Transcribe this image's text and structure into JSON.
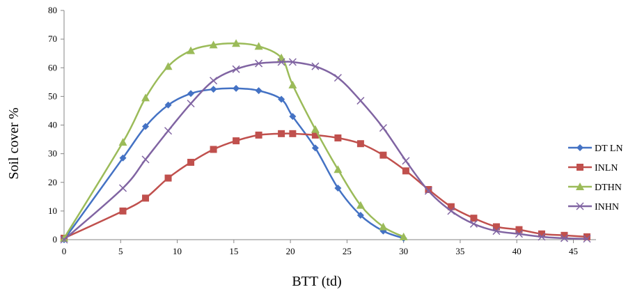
{
  "chart_data": {
    "type": "line",
    "title": "",
    "xlabel": "BTT (td)",
    "ylabel": "Soil cover %",
    "xlim": [
      0,
      47
    ],
    "ylim": [
      0,
      80
    ],
    "x_ticks": [
      0,
      5,
      10,
      15,
      20,
      25,
      30,
      35,
      40,
      45
    ],
    "y_ticks": [
      0,
      10,
      20,
      30,
      40,
      50,
      60,
      70,
      80
    ],
    "grid": false,
    "legend_position": "right",
    "series": [
      {
        "name": "DT LN",
        "color": "#4472C4",
        "marker": "diamond",
        "x": [
          0,
          5.2,
          7.2,
          9.2,
          11.2,
          13.2,
          15.2,
          17.2,
          19.2,
          20.2,
          22.2,
          24.2,
          26.2,
          28.2,
          30
        ],
        "y": [
          0,
          28.5,
          39.5,
          47,
          51,
          52.5,
          52.8,
          52,
          49,
          43,
          32,
          18,
          8.5,
          3,
          0.5
        ]
      },
      {
        "name": "INLN",
        "color": "#C0504D",
        "marker": "square",
        "x": [
          0,
          5.2,
          7.2,
          9.2,
          11.2,
          13.2,
          15.2,
          17.2,
          19.2,
          20.2,
          22.2,
          24.2,
          26.2,
          28.2,
          30.2,
          32.2,
          34.2,
          36.2,
          38.2,
          40.2,
          42.2,
          44.2,
          46.2
        ],
        "y": [
          0.5,
          10,
          14.5,
          21.5,
          27,
          31.5,
          34.5,
          36.5,
          37,
          37,
          36.5,
          35.5,
          33.5,
          29.5,
          24,
          17.5,
          11.5,
          7.5,
          4.5,
          3.5,
          2,
          1.5,
          1
        ]
      },
      {
        "name": "DTHN",
        "color": "#9BBB59",
        "marker": "triangle",
        "x": [
          0,
          5.2,
          7.2,
          9.2,
          11.2,
          13.2,
          15.2,
          17.2,
          19.2,
          20.2,
          22.2,
          24.2,
          26.2,
          28.2,
          30
        ],
        "y": [
          0.5,
          34,
          49.5,
          60.5,
          66,
          68,
          68.5,
          67.5,
          63.5,
          54,
          38.5,
          24.5,
          12,
          4.5,
          1
        ]
      },
      {
        "name": "INHN",
        "color": "#8064A2",
        "marker": "x",
        "x": [
          0,
          5.2,
          7.2,
          9.2,
          11.2,
          13.2,
          15.2,
          17.2,
          19.2,
          20.2,
          22.2,
          24.2,
          26.2,
          28.2,
          30.2,
          32.2,
          34.2,
          36.2,
          38.2,
          40.2,
          42.2,
          44.2,
          46.2
        ],
        "y": [
          0,
          18,
          28,
          38,
          47.5,
          55.5,
          59.5,
          61.5,
          62,
          62,
          60.5,
          56.5,
          48.5,
          39,
          27.5,
          17,
          10,
          5.5,
          3,
          2,
          1,
          0.5,
          0.3
        ]
      }
    ]
  }
}
